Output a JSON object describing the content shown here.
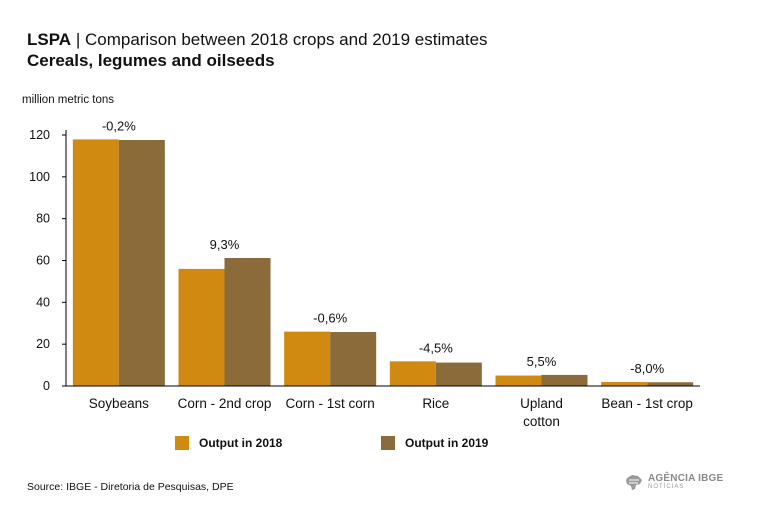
{
  "header": {
    "title_bold": "LSPA",
    "title_sep": "|",
    "title_rest": "Comparison between 2018 crops and 2019 estimates",
    "subtitle": "Cereals, legumes and oilseeds"
  },
  "footer": {
    "source": "Source: IBGE - Diretoria de Pesquisas, DPE",
    "logo_main": "AGÊNCIA IBGE",
    "logo_sub": "NOTÍCIAS"
  },
  "colors": {
    "series_2018": "#D08A12",
    "series_2019": "#8B6B3A",
    "axis": "#000000",
    "logo": "#8a8a8a"
  },
  "chart_data": {
    "type": "bar",
    "ylabel": "million metric tons",
    "xlabel": "",
    "ylim": [
      0,
      120
    ],
    "yticks": [
      0,
      20,
      40,
      60,
      80,
      100,
      120
    ],
    "grid": false,
    "legend_position": "bottom",
    "categories": [
      [
        "Soybeans"
      ],
      [
        "Corn - 2nd crop"
      ],
      [
        "Corn - 1st corn"
      ],
      [
        "Rice"
      ],
      [
        "Upland",
        "cotton"
      ],
      [
        "Bean - 1st crop"
      ]
    ],
    "series": [
      {
        "name": "Output in 2018",
        "values": [
          117.9,
          56.0,
          26.0,
          11.8,
          5.0,
          1.9
        ]
      },
      {
        "name": "Output in 2019",
        "values": [
          117.6,
          61.2,
          25.8,
          11.2,
          5.3,
          1.8
        ]
      }
    ],
    "annotations": [
      "-0,2%",
      "9,3%",
      "-0,6%",
      "-4,5%",
      "5,5%",
      "-8,0%"
    ]
  }
}
